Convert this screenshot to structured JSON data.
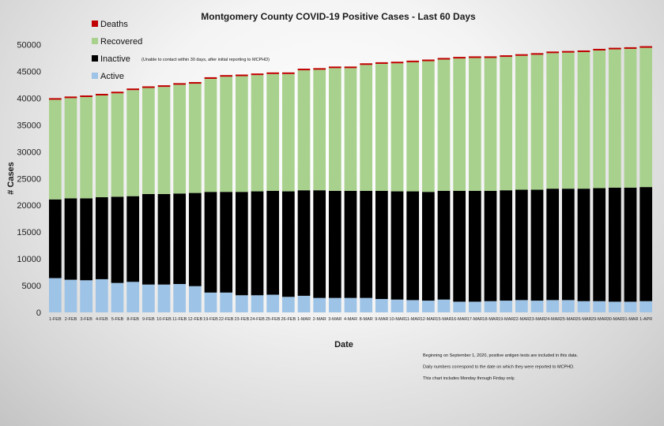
{
  "chart_data": {
    "type": "bar",
    "stacked": true,
    "title": "Montgomery County COVID-19 Positive Cases  - Last 60 Days",
    "xlabel": "Date",
    "ylabel": "# Cases",
    "ylim": [
      0,
      50000
    ],
    "yticks": [
      0,
      5000,
      10000,
      15000,
      20000,
      25000,
      30000,
      35000,
      40000,
      45000,
      50000
    ],
    "grid": false,
    "legend_position": "top-left",
    "categories": [
      "1-FEB",
      "2-FEB",
      "3-FEB",
      "4-FEB",
      "5-FEB",
      "8-FEB",
      "9-FEB",
      "10-FEB",
      "11-FEB",
      "12-FEB",
      "19-FEB",
      "22-FEB",
      "23-FEB",
      "24-FEB",
      "25-FEB",
      "26-FEB",
      "1-MAR",
      "2-MAR",
      "3-MAR",
      "4-MAR",
      "8-MAR",
      "9-MAR",
      "10-MAR",
      "11-MAR",
      "12-MAR",
      "15-MAR",
      "16-MAR",
      "17-MAR",
      "18-MAR",
      "19-MAR",
      "22-MAR",
      "23-MAR",
      "24-MAR",
      "25-MAR",
      "26-MAR",
      "29-MAR",
      "30-MAR",
      "31-MAR",
      "1-APR"
    ],
    "series": [
      {
        "name": "Active",
        "color": "#9dc3e6",
        "values": [
          6400,
          6100,
          6000,
          6200,
          5500,
          5700,
          5200,
          5200,
          5300,
          4900,
          3700,
          3700,
          3200,
          3200,
          3300,
          2900,
          3100,
          2700,
          2700,
          2700,
          2700,
          2500,
          2400,
          2300,
          2200,
          2400,
          2000,
          2000,
          2100,
          2200,
          2300,
          2200,
          2300,
          2300,
          2100,
          2100,
          2000,
          2000,
          2100
        ]
      },
      {
        "name": "Inactive",
        "note": "(Unable to contact within 30 days, after initial reporting to MCPHD)",
        "color": "#000000",
        "values": [
          14700,
          15200,
          15300,
          15300,
          16100,
          16000,
          16900,
          16900,
          16900,
          17400,
          18800,
          18800,
          19300,
          19400,
          19400,
          19700,
          19700,
          20100,
          20000,
          20000,
          20000,
          20200,
          20200,
          20300,
          20300,
          20300,
          20700,
          20700,
          20600,
          20600,
          20600,
          20700,
          20800,
          20800,
          21000,
          21100,
          21300,
          21300,
          21300
        ]
      },
      {
        "name": "Recovered",
        "color": "#a9d18e",
        "values": [
          18600,
          18700,
          18900,
          19000,
          19300,
          19800,
          19800,
          20000,
          20300,
          20400,
          21100,
          21500,
          21600,
          21700,
          21800,
          21900,
          22400,
          22500,
          22900,
          22900,
          23500,
          23700,
          23900,
          24100,
          24400,
          24500,
          24700,
          24800,
          24800,
          24900,
          25000,
          25200,
          25300,
          25400,
          25500,
          25700,
          25800,
          25900,
          26000
        ]
      },
      {
        "name": "Deaths",
        "color": "#c00000",
        "values": [
          300,
          300,
          300,
          300,
          300,
          300,
          300,
          300,
          300,
          300,
          300,
          300,
          300,
          300,
          300,
          300,
          300,
          300,
          300,
          300,
          300,
          300,
          300,
          300,
          300,
          300,
          300,
          300,
          300,
          300,
          300,
          300,
          300,
          300,
          300,
          300,
          300,
          300,
          300
        ]
      }
    ],
    "legend_order": [
      "Deaths",
      "Recovered",
      "Inactive",
      "Active"
    ],
    "notes": [
      "Beginning on September 1, 2020, positive antigen tests are included in this data.",
      "Daily numbers correspond to the date on which they were reported to MCPHD.",
      "This chart includes Monday through Firday only."
    ]
  }
}
